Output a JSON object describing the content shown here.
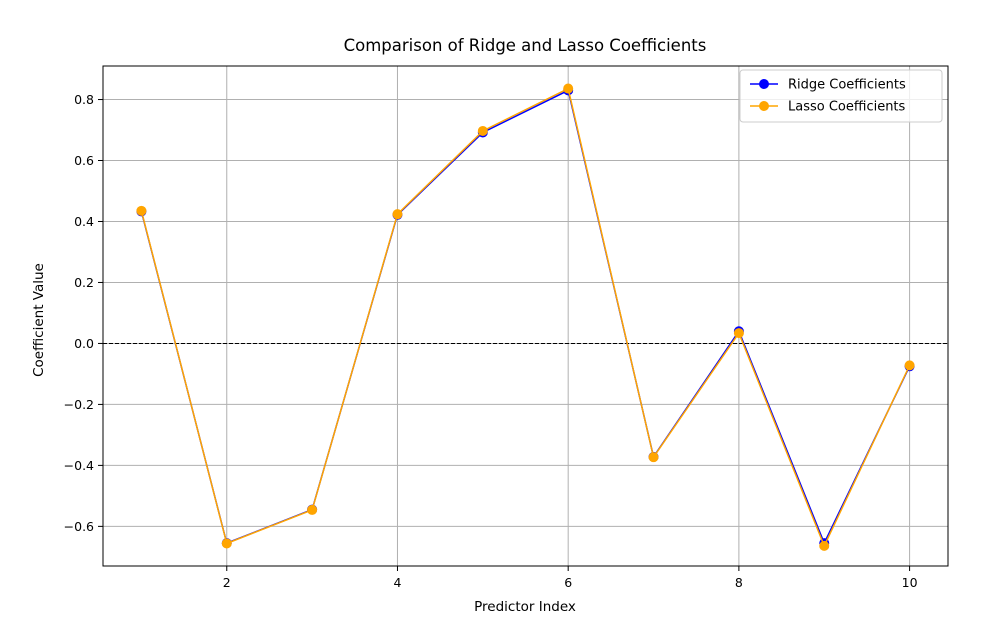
{
  "chart_data": {
    "type": "line",
    "title": "Comparison of Ridge and Lasso Coefficients",
    "xlabel": "Predictor Index",
    "ylabel": "Coefficient Value",
    "x": [
      1,
      2,
      3,
      4,
      5,
      6,
      7,
      8,
      9,
      10
    ],
    "xlim": [
      0.55,
      10.45
    ],
    "ylim": [
      -0.73,
      0.91
    ],
    "xticks": [
      2,
      4,
      6,
      8,
      10
    ],
    "yticks": [
      -0.6,
      -0.4,
      -0.2,
      0.0,
      0.2,
      0.4,
      0.6,
      0.8
    ],
    "ytick_labels": [
      "−0.6",
      "−0.4",
      "−0.2",
      "0.0",
      "0.2",
      "0.4",
      "0.6",
      "0.8"
    ],
    "grid": true,
    "reference_line": {
      "y": 0.0,
      "style": "dashed",
      "color": "#000000"
    },
    "legend_position": "top-right",
    "series": [
      {
        "name": "Ridge Coefficients",
        "color": "#0000ff",
        "values": [
          0.433,
          -0.655,
          -0.545,
          0.422,
          0.692,
          0.83,
          -0.372,
          0.04,
          -0.655,
          -0.075
        ]
      },
      {
        "name": "Lasso Coefficients",
        "color": "#ffa500",
        "values": [
          0.435,
          -0.656,
          -0.546,
          0.424,
          0.697,
          0.836,
          -0.373,
          0.034,
          -0.664,
          -0.072
        ]
      }
    ]
  }
}
